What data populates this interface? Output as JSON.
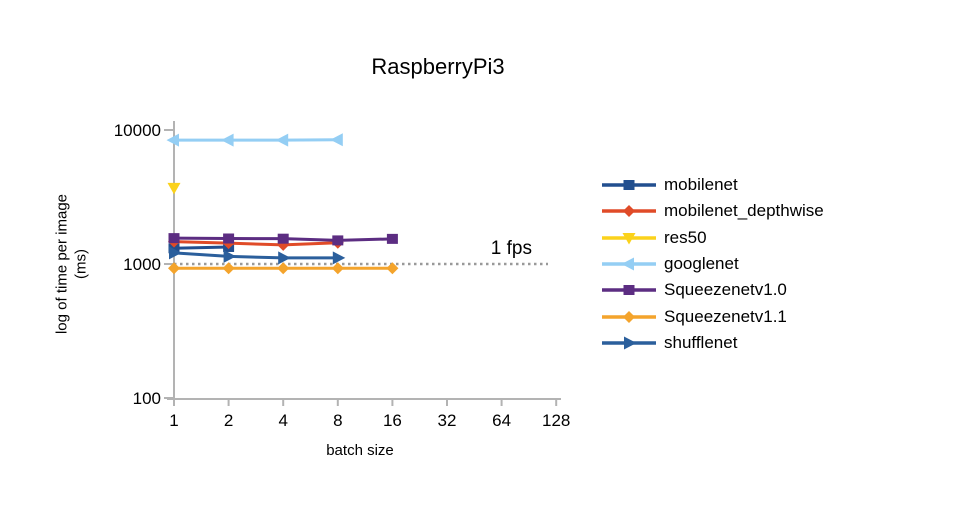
{
  "title": "RaspberryPi3",
  "y_axis_label_line1": "log of time per image",
  "y_axis_label_line2": "(ms)",
  "x_axis_label": "batch size",
  "threshold": {
    "label": "1 fps",
    "value_ms": 1000
  },
  "colors": {
    "axis": "#b3b3b3",
    "threshold_line": "#999999",
    "text": "#000000"
  },
  "chart_data": {
    "type": "line",
    "title": "RaspberryPi3",
    "xlabel": "batch size",
    "ylabel": "log of time per image (ms)",
    "x_scale": "log2",
    "y_scale": "log10",
    "xlim": [
      1,
      128
    ],
    "ylim": [
      100,
      10000
    ],
    "x_ticks": [
      "1",
      "2",
      "4",
      "8",
      "16",
      "32",
      "64",
      "128"
    ],
    "x_tick_values": [
      1,
      2,
      4,
      8,
      16,
      32,
      64,
      128
    ],
    "y_ticks": [
      "100",
      "1000",
      "10000"
    ],
    "y_tick_values": [
      100,
      1000,
      10000
    ],
    "grid": false,
    "legend_position": "right",
    "annotations": [
      {
        "text": "1 fps",
        "y": 1000,
        "style": "dotted-horizontal-line"
      }
    ],
    "series": [
      {
        "name": "mobilenet",
        "color": "#224F8F",
        "marker": "square",
        "x": [
          1,
          2
        ],
        "y": [
          1310,
          1340
        ]
      },
      {
        "name": "mobilenet_depthwise",
        "color": "#E04B28",
        "marker": "diamond",
        "x": [
          1,
          2,
          4,
          8
        ],
        "y": [
          1470,
          1430,
          1390,
          1440
        ]
      },
      {
        "name": "res50",
        "color": "#FBD21B",
        "marker": "triangle-down",
        "x": [
          1
        ],
        "y": [
          3700
        ]
      },
      {
        "name": "googlenet",
        "color": "#94CEF4",
        "marker": "triangle-left",
        "x": [
          1,
          2,
          4,
          8
        ],
        "y": [
          8400,
          8400,
          8400,
          8450
        ]
      },
      {
        "name": "Squeezenetv1.0",
        "color": "#5C2D82",
        "marker": "square",
        "x": [
          1,
          2,
          4,
          8,
          16
        ],
        "y": [
          1560,
          1550,
          1545,
          1500,
          1540
        ]
      },
      {
        "name": "Squeezenetv1.1",
        "color": "#F4A42C",
        "marker": "diamond",
        "x": [
          1,
          2,
          4,
          8,
          16
        ],
        "y": [
          930,
          930,
          930,
          930,
          930
        ]
      },
      {
        "name": "shufflenet",
        "color": "#2B5F9C",
        "marker": "triangle-right",
        "x": [
          1,
          2,
          4,
          8
        ],
        "y": [
          1210,
          1140,
          1110,
          1110
        ]
      }
    ]
  }
}
